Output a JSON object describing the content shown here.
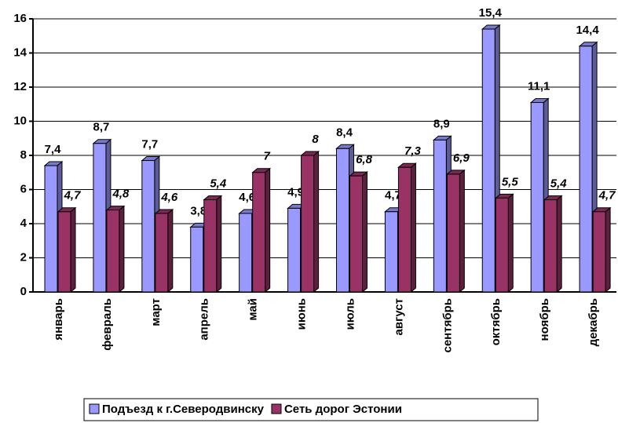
{
  "chart_data": {
    "type": "bar3d",
    "categories": [
      "январь",
      "февраль",
      "март",
      "апрель",
      "май",
      "июнь",
      "июль",
      "август",
      "сентябрь",
      "октябрь",
      "ноябрь",
      "декабрь"
    ],
    "series": [
      {
        "name": "Подъезд к г.Северодвинску",
        "color": "#9999ff",
        "values": [
          7.4,
          8.7,
          7.7,
          3.8,
          4.6,
          4.9,
          8.4,
          4.7,
          8.9,
          15.4,
          11.1,
          14.4
        ],
        "value_labels": [
          "7,4",
          "8,7",
          "7,7",
          "3,8",
          "4,6",
          "4,9",
          "8,4",
          "4,7",
          "8,9",
          "15,4",
          "11,1",
          "14,4"
        ]
      },
      {
        "name": "Сеть дорог Эстонии",
        "color": "#993366",
        "values": [
          4.7,
          4.8,
          4.6,
          5.4,
          7,
          8,
          6.8,
          7.3,
          6.9,
          5.5,
          5.4,
          4.7
        ],
        "value_labels": [
          "4,7",
          "4,8",
          "4,6",
          "5,4",
          "7",
          "8",
          "6,8",
          "7,3",
          "6,9",
          "5,5",
          "5,4",
          "4,7"
        ]
      }
    ],
    "ylim": [
      0,
      16
    ],
    "yticks": [
      0,
      2,
      4,
      6,
      8,
      10,
      12,
      14,
      16
    ],
    "grid": true,
    "legend": "bottom"
  }
}
